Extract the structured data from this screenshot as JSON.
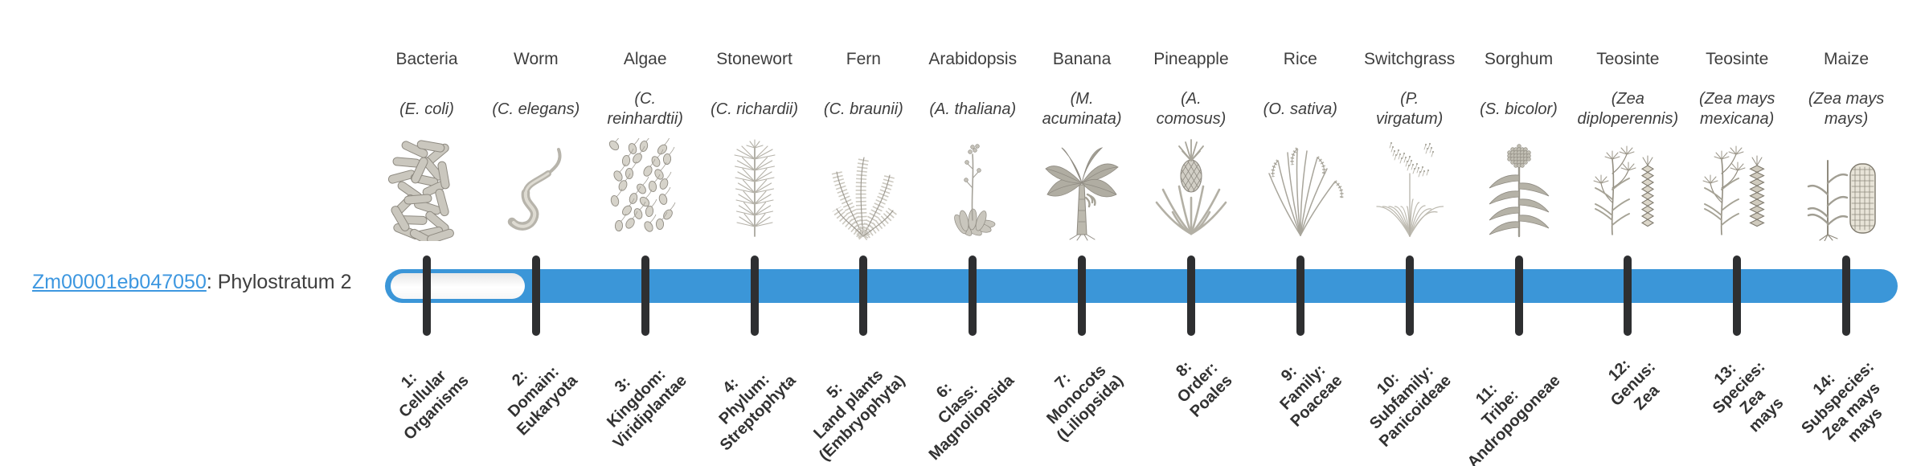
{
  "gene": {
    "id": "Zm00001eb047050",
    "suffix": ": Phylostratum 2",
    "phylostratum": 2
  },
  "timeline": {
    "total_strata": 14,
    "filled_from_stratum": 2,
    "bar_color": "#3b96d8",
    "tick_color": "#2e2f31",
    "link_color": "#3d97e0"
  },
  "organisms": [
    {
      "common": "Bacteria",
      "sci": "(E. coli)",
      "icon": "bacteria",
      "stratum": "1:\nCellular\nOrganisms"
    },
    {
      "common": "Worm",
      "sci": "(C. elegans)",
      "icon": "worm",
      "stratum": "2:\nDomain:\nEukaryota"
    },
    {
      "common": "Algae",
      "sci": "(C.\nreinhardtii)",
      "icon": "algae",
      "stratum": "3:\nKingdom:\nViridiplantae"
    },
    {
      "common": "Stonewort",
      "sci": "(C. richardii)",
      "icon": "stonewort",
      "stratum": "4:\nPhylum:\nStreptophyta"
    },
    {
      "common": "Fern",
      "sci": "(C. braunii)",
      "icon": "fern",
      "stratum": "5:\nLand plants\n(Embryophyta)"
    },
    {
      "common": "Arabidopsis",
      "sci": "(A. thaliana)",
      "icon": "arabidopsis",
      "stratum": "6:\nClass:\nMagnoliopsida"
    },
    {
      "common": "Banana",
      "sci": "(M.\nacuminata)",
      "icon": "banana",
      "stratum": "7:\nMonocots\n(Liliopsida)"
    },
    {
      "common": "Pineapple",
      "sci": "(A.\ncomosus)",
      "icon": "pineapple",
      "stratum": "8:\nOrder:\nPoales"
    },
    {
      "common": "Rice",
      "sci": "(O. sativa)",
      "icon": "rice",
      "stratum": "9:\nFamily:\nPoaceae"
    },
    {
      "common": "Switchgrass",
      "sci": "(P.\nvirgatum)",
      "icon": "switchgrass",
      "stratum": "10:\nSubfamily:\nPanicoideae"
    },
    {
      "common": "Sorghum",
      "sci": "(S. bicolor)",
      "icon": "sorghum",
      "stratum": "11:\nTribe:\nAndropogoneae"
    },
    {
      "common": "Teosinte",
      "sci": "(Zea\ndiploperennis)",
      "icon": "teosinte-diploperennis",
      "stratum": "12:\nGenus:\nZea"
    },
    {
      "common": "Teosinte",
      "sci": "(Zea mays\nmexicana)",
      "icon": "teosinte-mexicana",
      "stratum": "13:\nSpecies:\nZea\nmays"
    },
    {
      "common": "Maize",
      "sci": "(Zea mays\nmays)",
      "icon": "maize",
      "stratum": "14:\nSubspecies:\nZea mays\nmays"
    }
  ]
}
